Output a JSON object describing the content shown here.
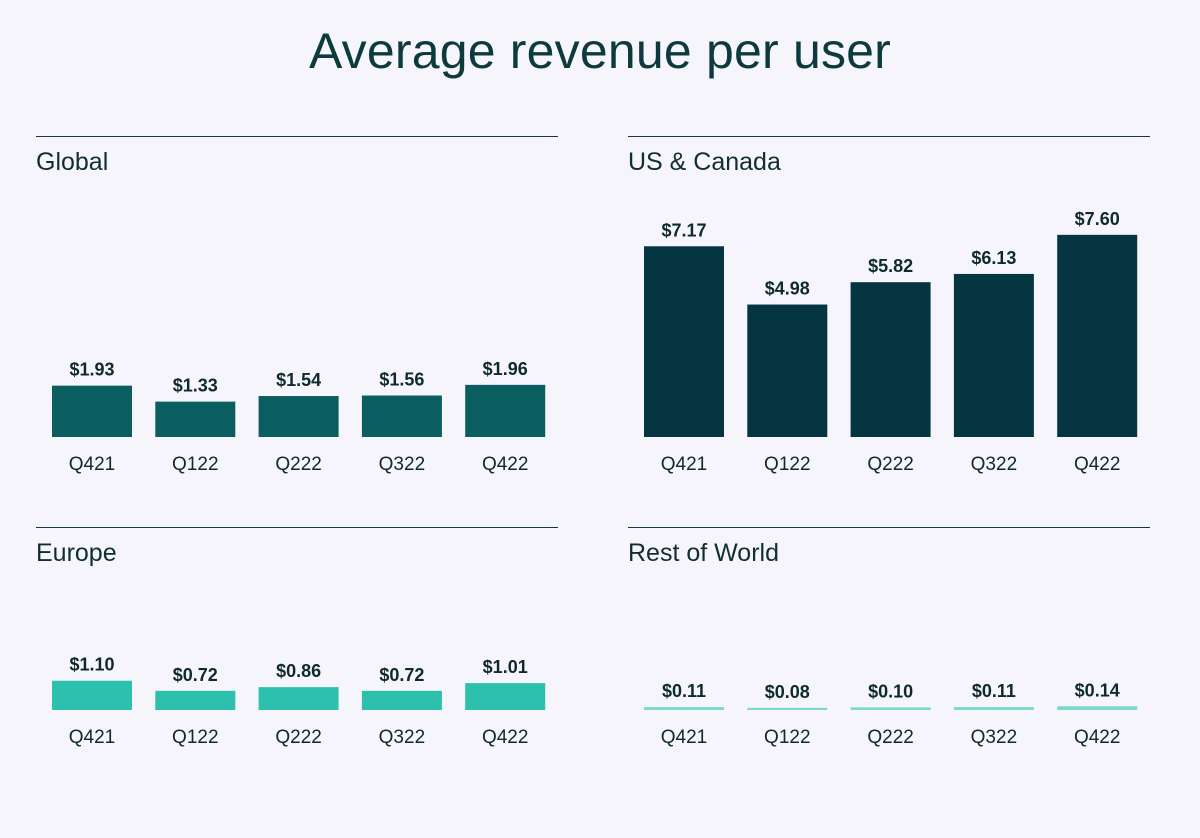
{
  "title": "Average revenue per user",
  "chart_data": [
    {
      "type": "bar",
      "title": "Global",
      "categories": [
        "Q421",
        "Q122",
        "Q222",
        "Q322",
        "Q422"
      ],
      "values": [
        1.93,
        1.33,
        1.54,
        1.56,
        1.96
      ],
      "labels": [
        "$1.93",
        "$1.33",
        "$1.54",
        "$1.56",
        "$1.96"
      ],
      "color": "#0a5e5f",
      "ylim": [
        0,
        7.6
      ]
    },
    {
      "type": "bar",
      "title": "US & Canada",
      "categories": [
        "Q421",
        "Q122",
        "Q222",
        "Q322",
        "Q422"
      ],
      "values": [
        7.17,
        4.98,
        5.82,
        6.13,
        7.6
      ],
      "labels": [
        "$7.17",
        "$4.98",
        "$5.82",
        "$6.13",
        "$7.60"
      ],
      "color": "#063542",
      "ylim": [
        0,
        7.6
      ]
    },
    {
      "type": "bar",
      "title": "Europe",
      "categories": [
        "Q421",
        "Q122",
        "Q222",
        "Q322",
        "Q422"
      ],
      "values": [
        1.1,
        0.72,
        0.86,
        0.72,
        1.01
      ],
      "labels": [
        "$1.10",
        "$0.72",
        "$0.86",
        "$0.72",
        "$1.01"
      ],
      "color": "#2dc0ad",
      "ylim": [
        0,
        7.6
      ]
    },
    {
      "type": "bar",
      "title": "Rest of World",
      "categories": [
        "Q421",
        "Q122",
        "Q222",
        "Q322",
        "Q422"
      ],
      "values": [
        0.11,
        0.08,
        0.1,
        0.11,
        0.14
      ],
      "labels": [
        "$0.11",
        "$0.08",
        "$0.10",
        "$0.11",
        "$0.14"
      ],
      "color": "#7ed9cd",
      "ylim": [
        0,
        7.6
      ]
    }
  ]
}
